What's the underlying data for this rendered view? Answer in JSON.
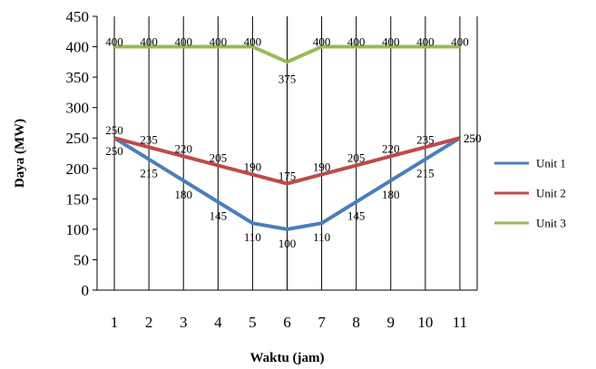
{
  "chart_data": {
    "type": "line",
    "title": "",
    "xlabel": "Waktu (jam)",
    "ylabel": "Daya (MW)",
    "x": [
      1,
      2,
      3,
      4,
      5,
      6,
      7,
      8,
      9,
      10,
      11
    ],
    "ylim": [
      0,
      450
    ],
    "yticks": [
      0,
      50,
      100,
      150,
      200,
      250,
      300,
      350,
      400,
      450
    ],
    "grid": "vertical",
    "legend_position": "right",
    "series": [
      {
        "name": "Unit 1",
        "color": "#4a7ebb",
        "values": [
          250,
          215,
          180,
          145,
          110,
          100,
          110,
          145,
          180,
          215,
          250
        ]
      },
      {
        "name": "Unit 2",
        "color": "#be4b48",
        "values": [
          250,
          235,
          220,
          205,
          190,
          175,
          190,
          205,
          220,
          235,
          250
        ]
      },
      {
        "name": "Unit 3",
        "color": "#98b954",
        "values": [
          400,
          400,
          400,
          400,
          400,
          375,
          400,
          400,
          400,
          400,
          400
        ]
      }
    ]
  }
}
